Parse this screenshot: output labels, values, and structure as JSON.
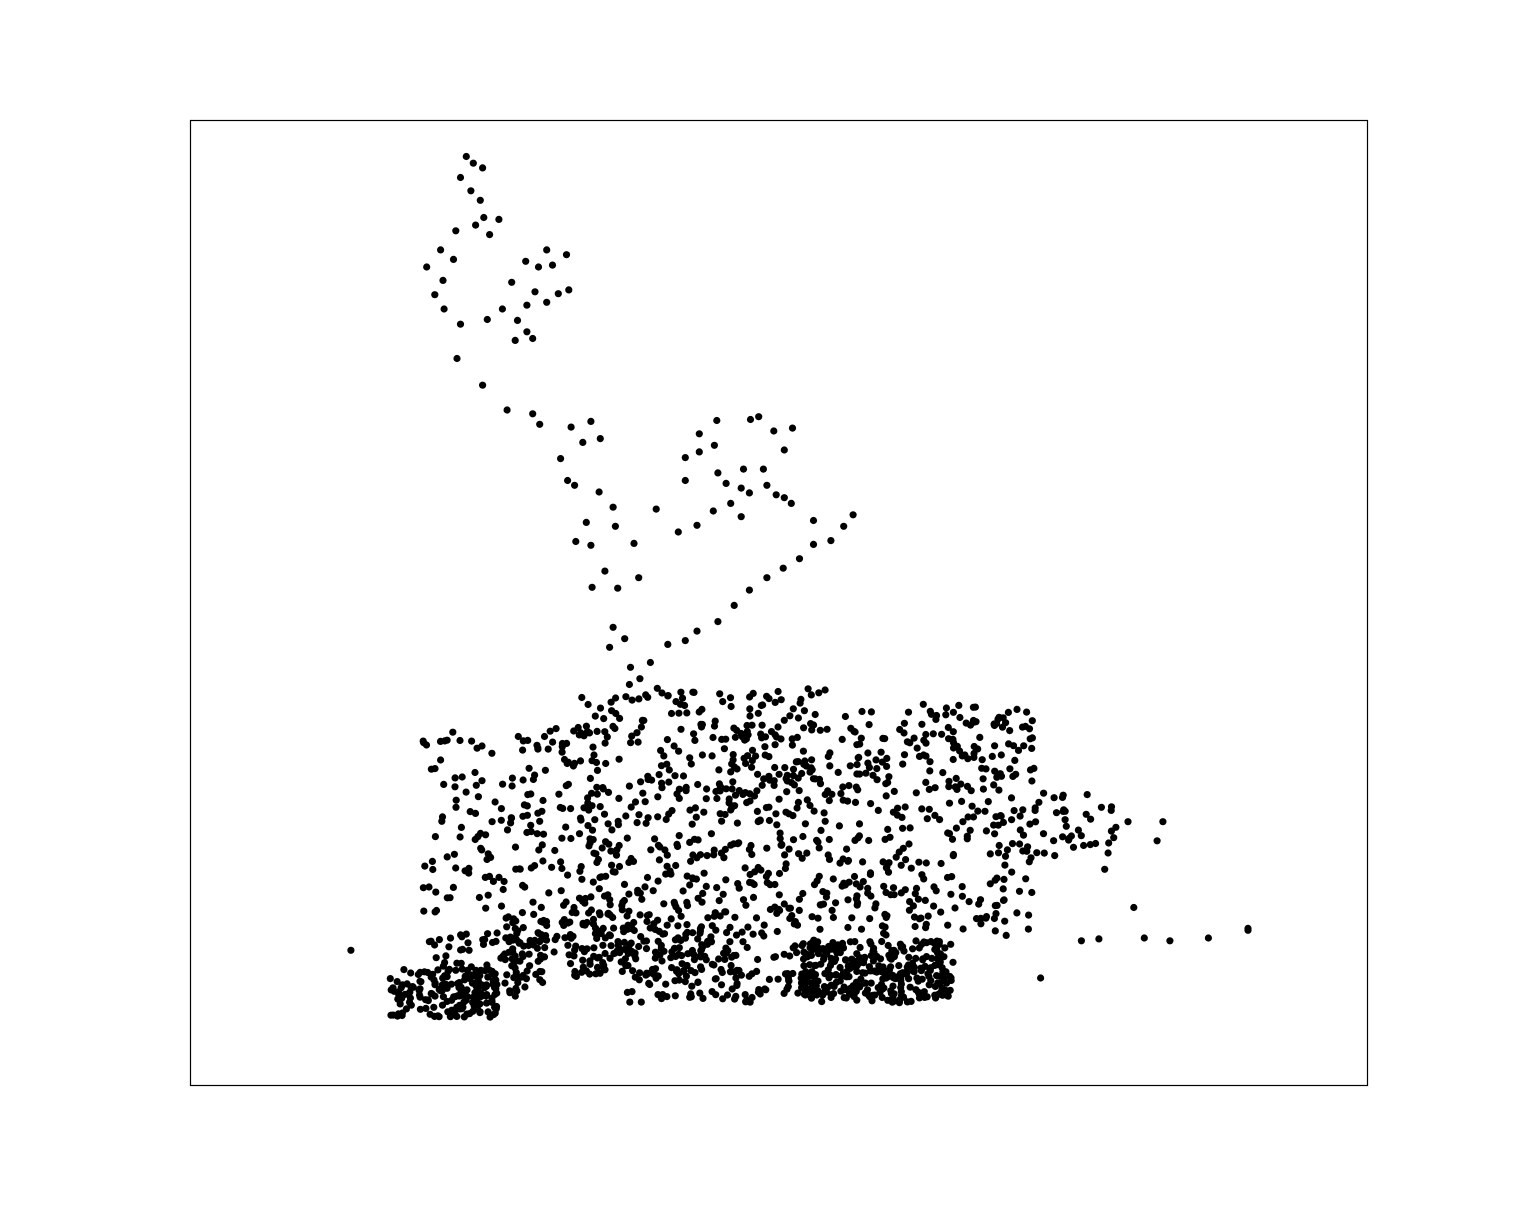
{
  "chart_data": {
    "type": "scatter",
    "title": "",
    "xlabel": "",
    "ylabel": "",
    "grid": false,
    "legend": "none",
    "axes_ticks": false,
    "xlim": [
      0,
      1000
    ],
    "ylim": [
      0,
      1000
    ],
    "colors": {
      "point": "#000000",
      "frame": "#000000",
      "background": "#ffffff"
    },
    "points": [
      [
        232,
        968
      ],
      [
        238,
        961
      ],
      [
        246,
        956
      ],
      [
        227,
        946
      ],
      [
        236,
        932
      ],
      [
        244,
        922
      ],
      [
        247,
        904
      ],
      [
        260,
        902
      ],
      [
        240,
        896
      ],
      [
        252,
        886
      ],
      [
        223,
        890
      ],
      [
        210,
        870
      ],
      [
        221,
        860
      ],
      [
        198,
        852
      ],
      [
        212,
        838
      ],
      [
        205,
        823
      ],
      [
        213,
        808
      ],
      [
        227,
        792
      ],
      [
        250,
        797
      ],
      [
        263,
        808
      ],
      [
        276,
        796
      ],
      [
        284,
        812
      ],
      [
        291,
        826
      ],
      [
        301,
        815
      ],
      [
        271,
        836
      ],
      [
        294,
        852
      ],
      [
        283,
        858
      ],
      [
        301,
        870
      ],
      [
        318,
        865
      ],
      [
        306,
        854
      ],
      [
        320,
        828
      ],
      [
        311,
        824
      ],
      [
        289,
        777
      ],
      [
        284,
        784
      ],
      [
        274,
        775
      ],
      [
        224,
        756
      ],
      [
        246,
        728
      ],
      [
        267,
        702
      ],
      [
        289,
        698
      ],
      [
        295,
        687
      ],
      [
        322,
        684
      ],
      [
        339,
        690
      ],
      [
        347,
        672
      ],
      [
        332,
        668
      ],
      [
        313,
        651
      ],
      [
        319,
        628
      ],
      [
        325,
        623
      ],
      [
        346,
        616
      ],
      [
        358,
        600
      ],
      [
        360,
        580
      ],
      [
        335,
        584
      ],
      [
        326,
        564
      ],
      [
        339,
        560
      ],
      [
        351,
        533
      ],
      [
        340,
        516
      ],
      [
        358,
        474
      ],
      [
        355,
        453
      ],
      [
        368,
        462
      ],
      [
        373,
        432
      ],
      [
        381,
        420
      ],
      [
        372,
        414
      ],
      [
        396,
        410
      ],
      [
        405,
        402
      ],
      [
        412,
        396
      ],
      [
        400,
        405
      ],
      [
        390,
        437
      ],
      [
        405,
        456
      ],
      [
        420,
        460
      ],
      [
        430,
        470
      ],
      [
        448,
        480
      ],
      [
        462,
        497
      ],
      [
        475,
        513
      ],
      [
        490,
        526
      ],
      [
        504,
        536
      ],
      [
        518,
        546
      ],
      [
        530,
        561
      ],
      [
        545,
        565
      ],
      [
        556,
        580
      ],
      [
        564,
        592
      ],
      [
        530,
        586
      ],
      [
        511,
        604
      ],
      [
        498,
        613
      ],
      [
        468,
        620
      ],
      [
        448,
        636
      ],
      [
        420,
        652
      ],
      [
        432,
        677
      ],
      [
        447,
        691
      ],
      [
        475,
        615
      ],
      [
        490,
        623
      ],
      [
        505,
        610
      ],
      [
        468,
        590
      ],
      [
        444,
        596
      ],
      [
        430,
        581
      ],
      [
        414,
        574
      ],
      [
        395,
        598
      ],
      [
        376,
        562
      ],
      [
        380,
        526
      ],
      [
        362,
        515
      ],
      [
        420,
        628
      ],
      [
        432,
        658
      ],
      [
        445,
        665
      ],
      [
        455,
        625
      ],
      [
        470,
        640
      ],
      [
        476,
        692
      ],
      [
        483,
        695
      ],
      [
        496,
        680
      ],
      [
        512,
        683
      ],
      [
        505,
        660
      ],
      [
        487,
        640
      ],
      [
        459,
        604
      ]
    ],
    "regions": [
      {
        "x": [
          195,
          330
        ],
        "y": [
          175,
          370
        ],
        "n": 160
      },
      {
        "x": [
          330,
          540
        ],
        "y": [
          125,
          410
        ],
        "n": 560
      },
      {
        "x": [
          540,
          720
        ],
        "y": [
          150,
          395
        ],
        "n": 360
      },
      {
        "x": [
          265,
          460
        ],
        "y": [
          105,
          175
        ],
        "n": 200
      },
      {
        "x": [
          165,
          260
        ],
        "y": [
          65,
          115
        ],
        "n": 150
      },
      {
        "x": [
          200,
          300
        ],
        "y": [
          85,
          155
        ],
        "n": 100
      },
      {
        "x": [
          520,
          650
        ],
        "y": [
          85,
          145
        ],
        "n": 260
      },
      {
        "x": [
          370,
          620
        ],
        "y": [
          80,
          115
        ],
        "n": 140
      },
      {
        "x": [
          720,
          790
        ],
        "y": [
          230,
          300
        ],
        "n": 40
      }
    ],
    "outliers": [
      [
        133,
        135
      ],
      [
        814,
        148
      ],
      [
        836,
        145
      ],
      [
        869,
        148
      ],
      [
        903,
        156
      ],
      [
        903,
        158
      ],
      [
        760,
        145
      ],
      [
        775,
        147
      ],
      [
        725,
        106
      ],
      [
        800,
        270
      ],
      [
        830,
        270
      ],
      [
        825,
        250
      ],
      [
        805,
        180
      ],
      [
        780,
        220
      ],
      [
        660,
        340
      ],
      [
        700,
        295
      ]
    ]
  }
}
